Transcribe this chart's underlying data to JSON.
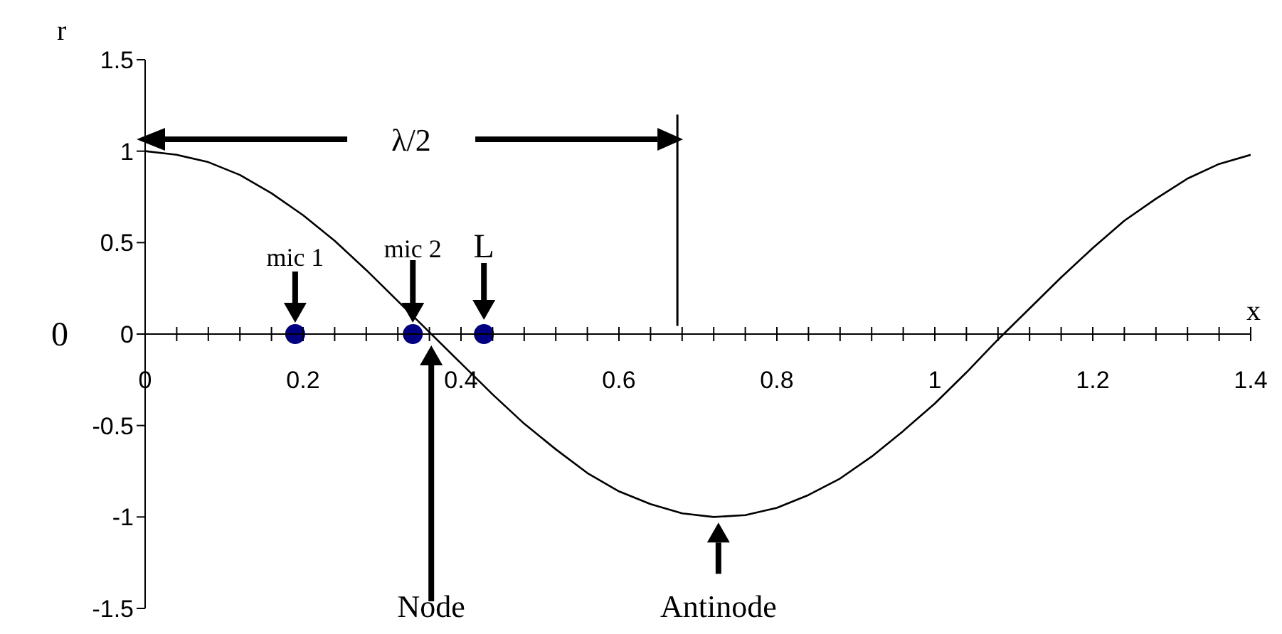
{
  "chart_data": {
    "type": "line",
    "xlabel": "x",
    "ylabel": "r",
    "x": [
      0,
      0.04,
      0.08,
      0.12,
      0.16,
      0.2,
      0.24,
      0.28,
      0.32,
      0.36,
      0.4,
      0.44,
      0.48,
      0.52,
      0.56,
      0.6,
      0.64,
      0.68,
      0.72,
      0.76,
      0.8,
      0.84,
      0.88,
      0.92,
      0.96,
      1,
      1.04,
      1.08,
      1.12,
      1.16,
      1.2,
      1.24,
      1.28,
      1.32,
      1.36,
      1.4
    ],
    "series": [
      {
        "type": "line",
        "color": "#000000",
        "line_style": "solid",
        "marker": "none",
        "values": [
          1,
          0.98,
          0.94,
          0.87,
          0.77,
          0.65,
          0.51,
          0.35,
          0.18,
          0.01,
          -0.16,
          -0.33,
          -0.49,
          -0.63,
          -0.76,
          -0.86,
          -0.93,
          -0.98,
          -1,
          -0.99,
          -0.95,
          -0.88,
          -0.79,
          -0.67,
          -0.53,
          -0.38,
          -0.21,
          -0.03,
          0.14,
          0.31,
          0.47,
          0.62,
          0.74,
          0.85,
          0.93,
          0.98
        ]
      },
      {
        "type": "scatter",
        "color": "#000080",
        "marker": "circle",
        "x": [
          0.19,
          0.339,
          0.429
        ],
        "values": [
          0,
          0,
          0
        ]
      }
    ],
    "xlim": [
      0,
      1.4
    ],
    "xticks": [
      0,
      {
        "value": 0.04,
        "label": null
      },
      {
        "value": 0.08,
        "label": null
      },
      {
        "value": 0.12,
        "label": null
      },
      {
        "value": 0.16,
        "label": null
      },
      0.2,
      {
        "value": 0.24,
        "label": null
      },
      {
        "value": 0.28,
        "label": null
      },
      {
        "value": 0.32,
        "label": null
      },
      {
        "value": 0.36,
        "label": null
      },
      0.4,
      {
        "value": 0.44,
        "label": null
      },
      {
        "value": 0.48,
        "label": null
      },
      {
        "value": 0.52,
        "label": null
      },
      {
        "value": 0.56,
        "label": null
      },
      0.6,
      {
        "value": 0.64,
        "label": null
      },
      {
        "value": 0.68,
        "label": null
      },
      {
        "value": 0.72,
        "label": null
      },
      {
        "value": 0.76,
        "label": null
      },
      0.8,
      {
        "value": 0.84,
        "label": null
      },
      {
        "value": 0.88,
        "label": null
      },
      {
        "value": 0.92,
        "label": null
      },
      {
        "value": 0.96,
        "label": null
      },
      1,
      {
        "value": 1.04,
        "label": null
      },
      {
        "value": 1.08,
        "label": null
      },
      {
        "value": 1.12,
        "label": null
      },
      {
        "value": 1.16,
        "label": null
      },
      1.2,
      {
        "value": 1.24,
        "label": null
      },
      {
        "value": 1.28,
        "label": null
      },
      {
        "value": 1.32,
        "label": null
      },
      {
        "value": 1.36,
        "label": null
      },
      1.4
    ],
    "ylim": [
      -1.5,
      1.5
    ],
    "yticks": [
      -1.5,
      -1,
      -0.5,
      0,
      0.5,
      1,
      1.5
    ],
    "ref_lines": [
      {
        "axis": "x",
        "value": 0.674,
        "color": "#000000"
      }
    ],
    "annotations": [
      "0",
      "λ/2",
      {
        "text": "mic 1",
        "x": 0.19,
        "y": 0
      },
      {
        "text": "mic 2",
        "x": 0.339,
        "y": 0
      },
      {
        "text": "L",
        "x": 0.429,
        "y": 0
      },
      "Node",
      {
        "text": "Antinode",
        "x": 0.726,
        "y": -1
      }
    ]
  }
}
